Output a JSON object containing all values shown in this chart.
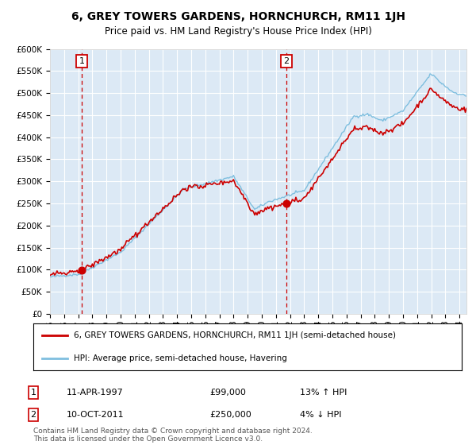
{
  "title": "6, GREY TOWERS GARDENS, HORNCHURCH, RM11 1JH",
  "subtitle": "Price paid vs. HM Land Registry's House Price Index (HPI)",
  "sale1": {
    "date_t": 1997.25,
    "price": 99000,
    "label": "1",
    "hpi_pct": "13% ↑ HPI",
    "date_str": "11-APR-1997",
    "price_str": "£99,000"
  },
  "sale2": {
    "date_t": 2011.75,
    "price": 250000,
    "label": "2",
    "hpi_pct": "4% ↓ HPI",
    "date_str": "10-OCT-2011",
    "price_str": "£250,000"
  },
  "red_line_label": "6, GREY TOWERS GARDENS, HORNCHURCH, RM11 1JH (semi-detached house)",
  "blue_line_label": "HPI: Average price, semi-detached house, Havering",
  "footer": "Contains HM Land Registry data © Crown copyright and database right 2024.\nThis data is licensed under the Open Government Licence v3.0.",
  "hpi_color": "#7fbfdf",
  "price_color": "#cc0000",
  "bg_color": "#dce9f5",
  "grid_color": "#ffffff",
  "dashed_line_color": "#cc0000",
  "ylim": [
    0,
    600000
  ],
  "yticks": [
    0,
    50000,
    100000,
    150000,
    200000,
    250000,
    300000,
    350000,
    400000,
    450000,
    500000,
    550000,
    600000
  ],
  "xlim_start": 1995.0,
  "xlim_end": 2024.5
}
